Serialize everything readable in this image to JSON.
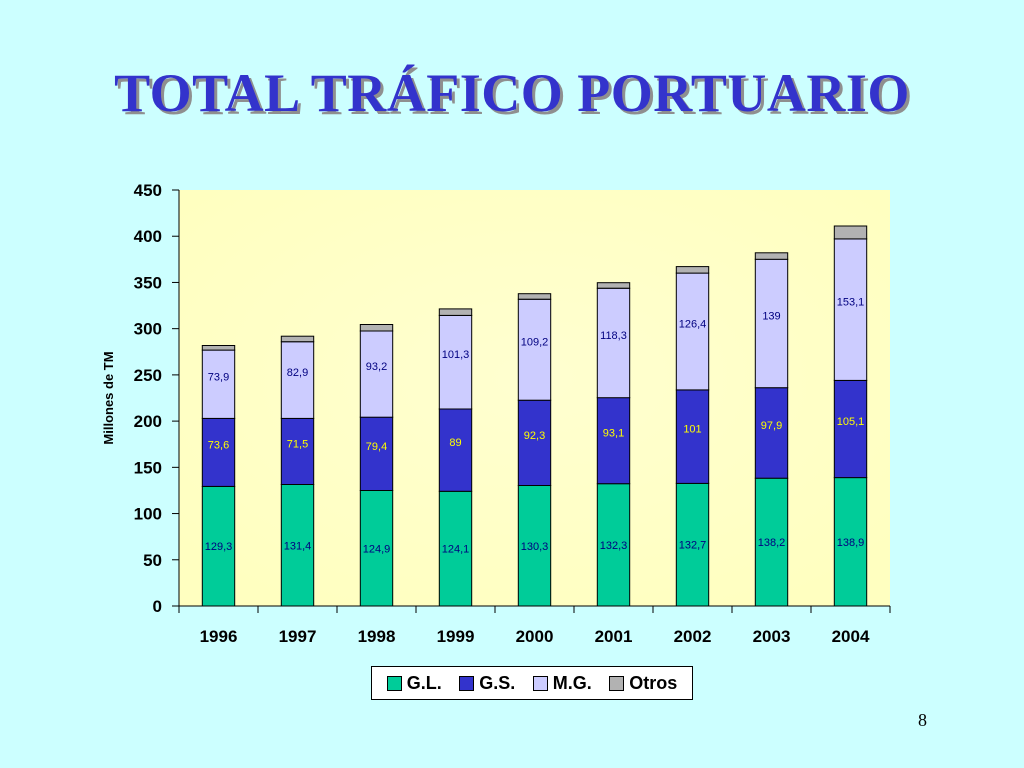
{
  "slide": {
    "title": "TOTAL TRÁFICO PORTUARIO",
    "page_number": "8"
  },
  "chart_data": {
    "type": "bar",
    "stacked": true,
    "categories": [
      "1996",
      "1997",
      "1998",
      "1999",
      "2000",
      "2001",
      "2002",
      "2003",
      "2004"
    ],
    "series": [
      {
        "name": "G.L.",
        "color": "#00cc99",
        "label_color": "#000080",
        "values": [
          129.3,
          131.4,
          124.9,
          124.1,
          130.3,
          132.3,
          132.7,
          138.2,
          138.9
        ],
        "labels": [
          "129,3",
          "131,4",
          "124,9",
          "124,1",
          "130,3",
          "132,3",
          "132,7",
          "138,2",
          "138,9"
        ]
      },
      {
        "name": "G.S.",
        "color": "#3333cc",
        "label_color": "#ffff00",
        "values": [
          73.6,
          71.5,
          79.4,
          89,
          92.3,
          93.1,
          101,
          97.9,
          105.1
        ],
        "labels": [
          "73,6",
          "71,5",
          "79,4",
          "89",
          "92,3",
          "93,1",
          "101",
          "97,9",
          "105,1"
        ]
      },
      {
        "name": "M.G.",
        "color": "#ccccff",
        "label_color": "#000080",
        "values": [
          73.9,
          82.9,
          93.2,
          101.3,
          109.2,
          118.3,
          126.4,
          139,
          153.1
        ],
        "labels": [
          "73,9",
          "82,9",
          "93,2",
          "101,3",
          "109,2",
          "118,3",
          "126,4",
          "139",
          "153,1"
        ]
      },
      {
        "name": "Otros",
        "color": "#b2b2b2",
        "label_color": "#000000",
        "values": [
          5,
          6,
          7,
          7,
          6,
          6,
          7,
          7,
          14
        ],
        "labels": [
          "",
          "",
          "",
          "",
          "",
          "",
          "",
          "",
          ""
        ]
      }
    ],
    "ylabel": "Millones de TM",
    "xlabel": "",
    "ylim": [
      0,
      450
    ],
    "yticks": [
      "0",
      "50",
      "100",
      "150",
      "200",
      "250",
      "300",
      "350",
      "400",
      "450"
    ],
    "ytick_values": [
      0,
      50,
      100,
      150,
      200,
      250,
      300,
      350,
      400,
      450
    ],
    "grid": false,
    "legend_position": "bottom",
    "plot_background": "#ffffcc"
  }
}
